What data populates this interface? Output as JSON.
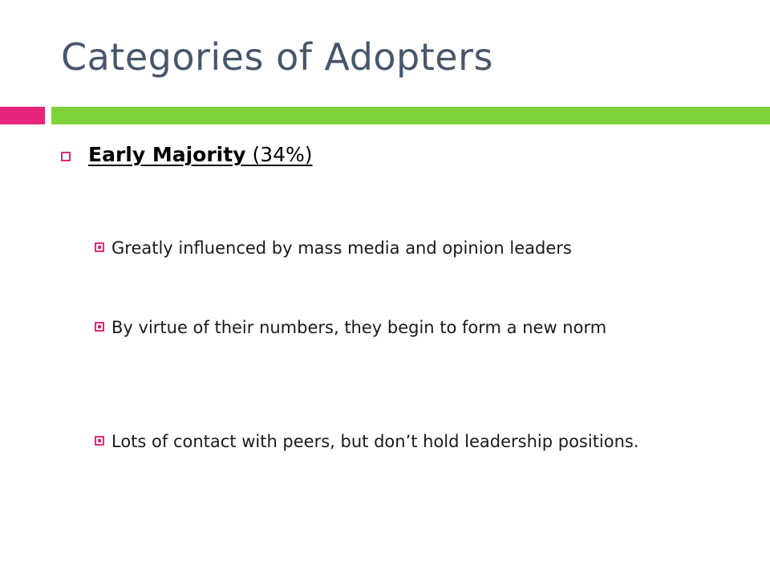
{
  "slide": {
    "title": "Categories of Adopters",
    "accent_colors": {
      "pink": "#e8257a",
      "green": "#7fd13b",
      "title": "#48566b"
    },
    "heading": {
      "label": "Early Majority",
      "percent": "(34%)",
      "bullet_icon": "hollow-square-bullet"
    },
    "bullets": [
      {
        "text": "Greatly influenced by mass media and opinion leaders",
        "icon": "filled-square-bullet"
      },
      {
        "text": "By virtue of their numbers, they begin to form a new norm",
        "icon": "filled-square-bullet"
      },
      {
        "text": "Lots of contact with peers, but don’t hold leadership positions.",
        "icon": "filled-square-bullet"
      }
    ]
  }
}
